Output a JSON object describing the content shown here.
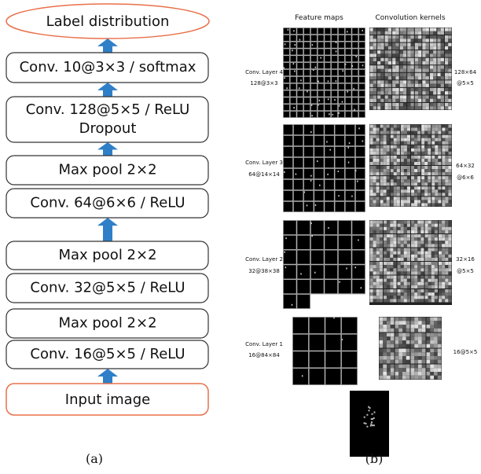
{
  "panel_a": {
    "output": "Label distribution",
    "layers": [
      [
        "Conv. 10@3×3 / softmax"
      ],
      [
        "Conv. 128@5×5 / ReLU",
        "Dropout"
      ],
      [
        "Max pool 2×2"
      ],
      [
        "Conv. 64@6×6 / ReLU"
      ],
      [
        "Max pool 2×2"
      ],
      [
        "Conv. 32@5×5 / ReLU"
      ],
      [
        "Max pool 2×2"
      ],
      [
        "Conv. 16@5×5 / ReLU"
      ]
    ],
    "input": "Input image",
    "caption": "(a)"
  },
  "panel_b": {
    "headers": [
      "Feature maps",
      "Convolution kernels"
    ],
    "rows": [
      {
        "feature_label": [
          "Conv. Layer 4",
          "128@3×3"
        ],
        "kernel_label": [
          "128×64",
          "@5×5"
        ]
      },
      {
        "feature_label": [
          "Conv. Layer 3",
          "64@14×14"
        ],
        "kernel_label": [
          "64×32",
          "@6×6"
        ]
      },
      {
        "feature_label": [
          "Conv. Layer 2",
          "32@38×38"
        ],
        "kernel_label": [
          "32×16",
          "@5×5"
        ]
      },
      {
        "feature_label": [
          "Conv. Layer 1",
          "16@84×84"
        ],
        "kernel_label": [
          "16@5×5"
        ]
      }
    ],
    "caption": "(b)"
  }
}
